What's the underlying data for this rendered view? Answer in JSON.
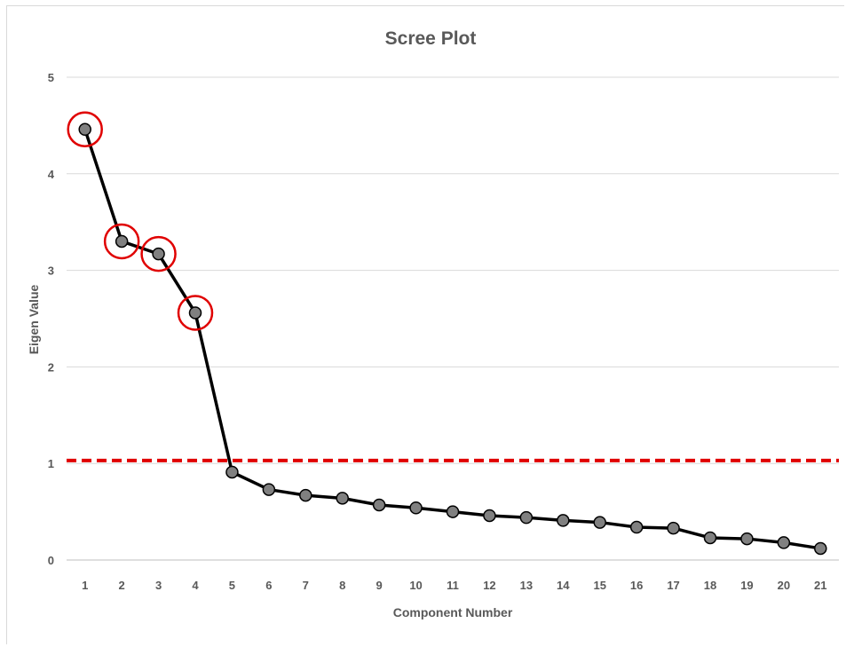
{
  "chart_data": {
    "type": "line",
    "title": "Scree Plot",
    "xlabel": "Component Number",
    "ylabel": "Eigen Value",
    "ylim": [
      0,
      5
    ],
    "yticks": [
      "0",
      "1",
      "2",
      "3",
      "4",
      "5"
    ],
    "grid": "horizontal",
    "categories": [
      "1",
      "2",
      "3",
      "4",
      "5",
      "6",
      "7",
      "8",
      "9",
      "10",
      "11",
      "12",
      "13",
      "14",
      "15",
      "16",
      "17",
      "18",
      "19",
      "20",
      "21"
    ],
    "series": [
      {
        "values": [
          4.46,
          3.3,
          3.17,
          2.56,
          0.91,
          0.73,
          0.67,
          0.64,
          0.57,
          0.54,
          0.5,
          0.46,
          0.44,
          0.41,
          0.39,
          0.34,
          0.33,
          0.23,
          0.22,
          0.18,
          0.12
        ],
        "color": "#000000",
        "marker_color": "#808080"
      }
    ],
    "reference_line": {
      "y": 1.03,
      "style": "dashed",
      "color": "#e00000"
    },
    "highlighted_points": [
      1,
      2,
      3,
      4
    ],
    "highlight_color": "#e00000"
  }
}
